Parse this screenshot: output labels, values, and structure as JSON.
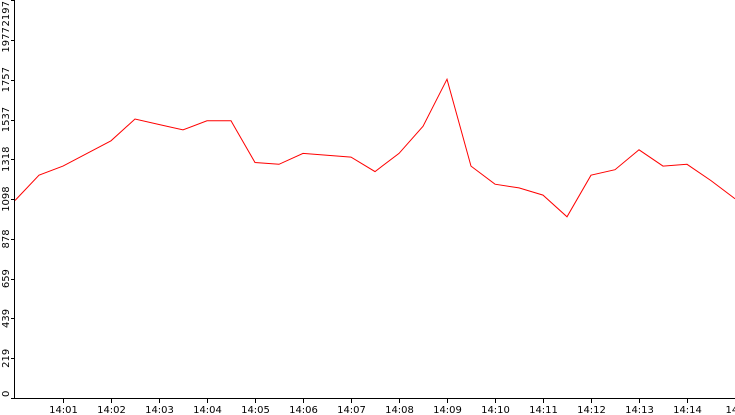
{
  "colors": {
    "background": "#ffffff",
    "axis": "#000000",
    "series": "#ff0000"
  },
  "chart_data": {
    "type": "line",
    "title": "",
    "xlabel": "",
    "ylabel": "",
    "grid": false,
    "legend": "none",
    "ylim": [
      0,
      2197
    ],
    "y_ticks": [
      "0",
      "219",
      "439",
      "659",
      "878",
      "1098",
      "1318",
      "1537",
      "1757",
      "1977",
      "2197"
    ],
    "x_range": [
      "14:00",
      "14:15"
    ],
    "x_ticks": [
      "14:01",
      "14:02",
      "14:03",
      "14:04",
      "14:05",
      "14:06",
      "14:07",
      "14:08",
      "14:09",
      "14:10",
      "14:11",
      "14:12",
      "14:13",
      "14:14",
      "14"
    ],
    "series": [
      {
        "color": "#ff0000",
        "x": [
          "14:00:00",
          "14:00:30",
          "14:01:00",
          "14:01:30",
          "14:02:00",
          "14:02:30",
          "14:03:00",
          "14:03:30",
          "14:04:00",
          "14:04:30",
          "14:05:00",
          "14:05:30",
          "14:06:00",
          "14:06:30",
          "14:07:00",
          "14:07:30",
          "14:08:00",
          "14:08:30",
          "14:09:00",
          "14:09:30",
          "14:10:00",
          "14:10:30",
          "14:11:00",
          "14:11:30",
          "14:12:00",
          "14:12:30",
          "14:13:00",
          "14:13:30",
          "14:14:00",
          "14:14:30",
          "14:15:00"
        ],
        "values": [
          1090,
          1230,
          1280,
          1350,
          1420,
          1540,
          1510,
          1480,
          1530,
          1530,
          1300,
          1290,
          1350,
          1340,
          1330,
          1250,
          1350,
          1500,
          1760,
          1280,
          1180,
          1160,
          1120,
          1000,
          1230,
          1260,
          1370,
          1280,
          1290,
          1200,
          1100
        ]
      }
    ]
  }
}
